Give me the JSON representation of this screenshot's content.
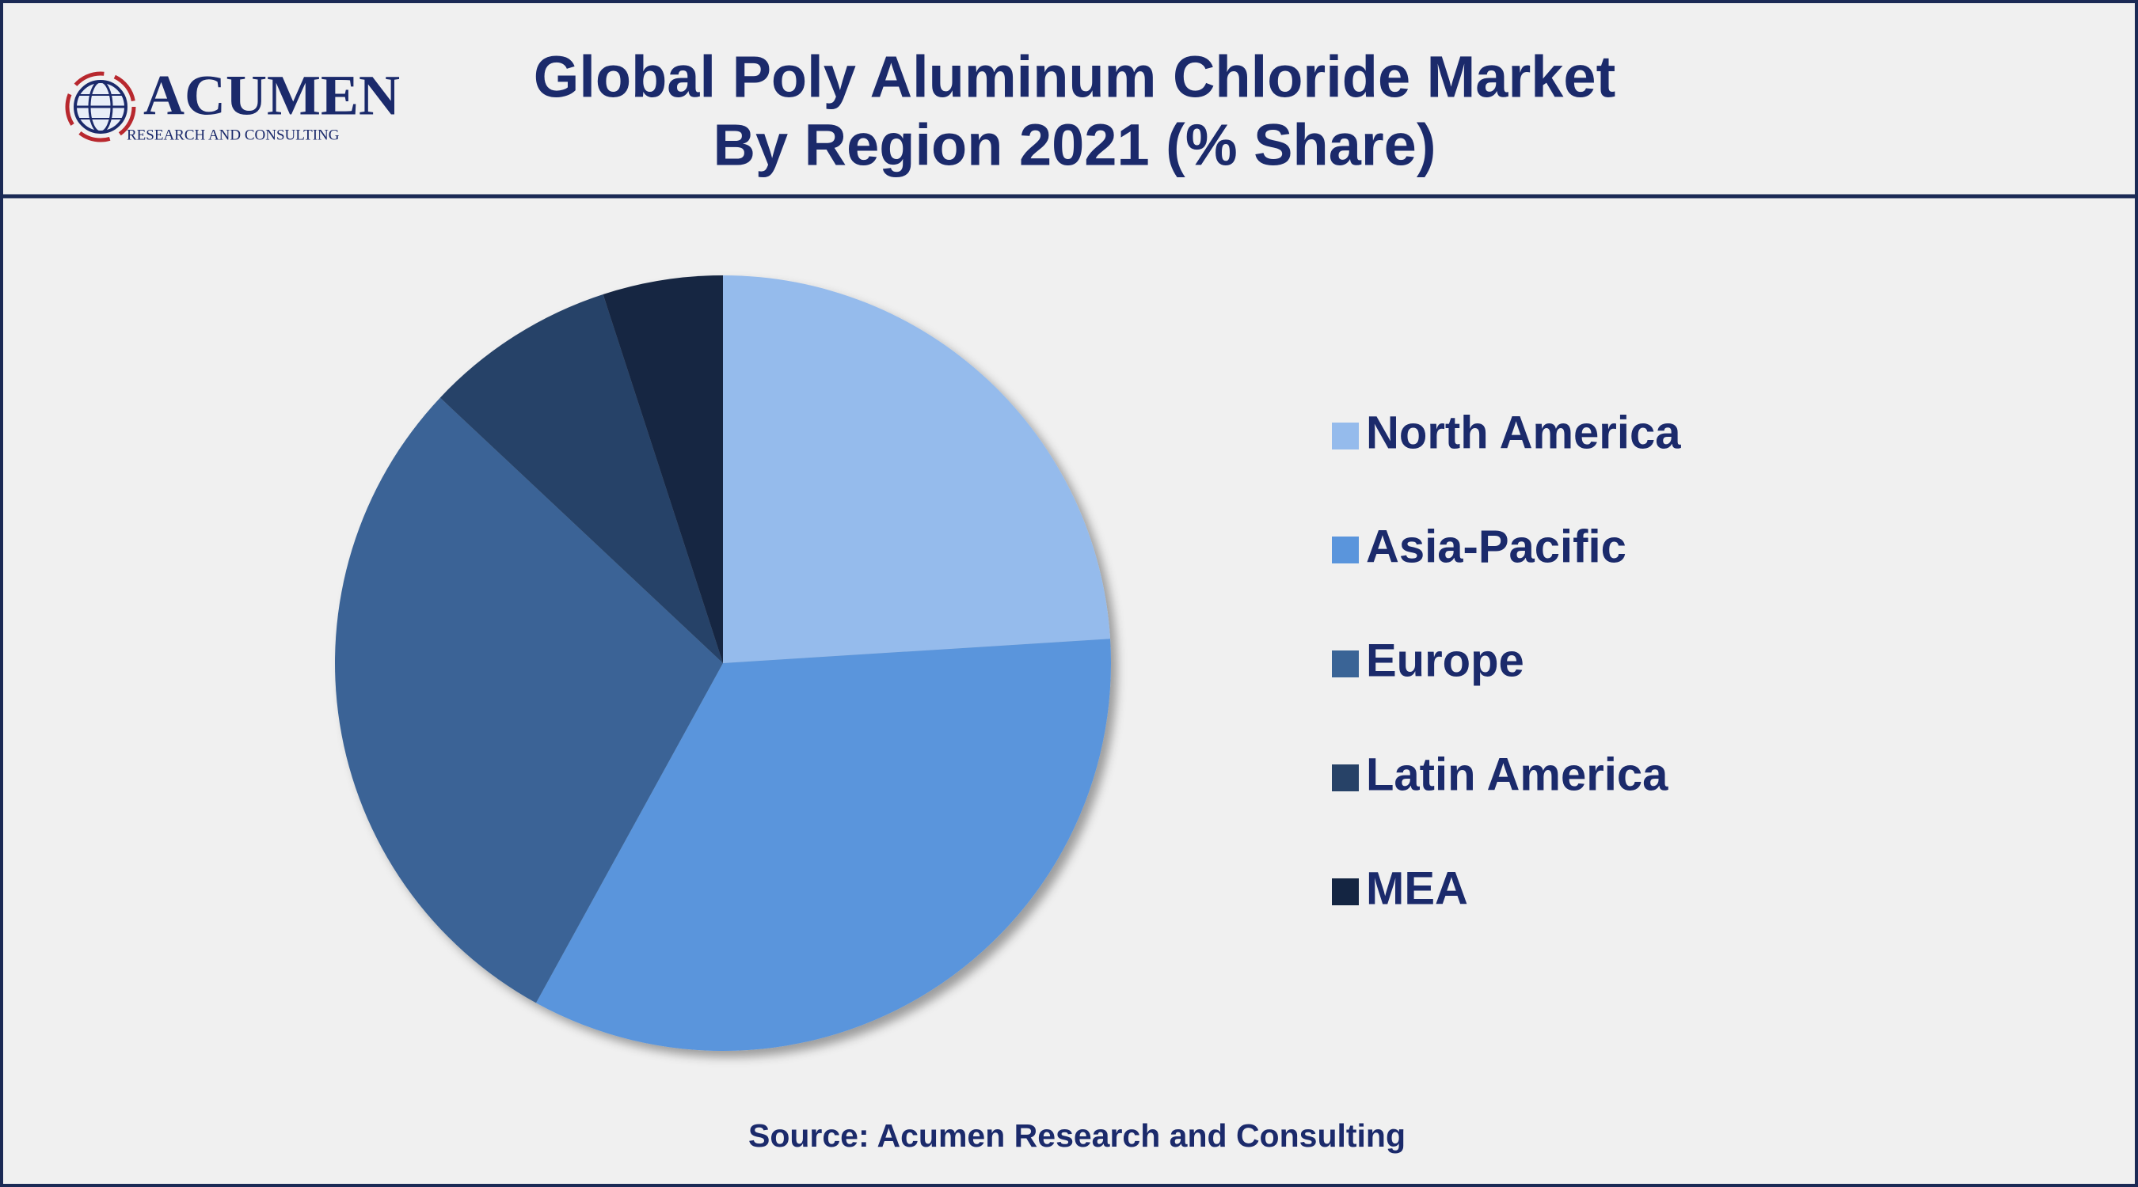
{
  "logo": {
    "name": "ACUMEN",
    "tagline": "RESEARCH AND CONSULTING"
  },
  "chart_data": {
    "type": "pie",
    "title": "Global Poly Aluminum Chloride Market",
    "subtitle": "By Region 2021 (% Share)",
    "categories": [
      "North America",
      "Asia-Pacific",
      "Europe",
      "Latin America",
      "MEA"
    ],
    "values": [
      24,
      34,
      29,
      8,
      5
    ],
    "colors": [
      "#95bbec",
      "#5a95dc",
      "#3a6496",
      "#274267",
      "#142542"
    ],
    "legend": "right",
    "source": "Source: Acumen Research and Consulting"
  }
}
